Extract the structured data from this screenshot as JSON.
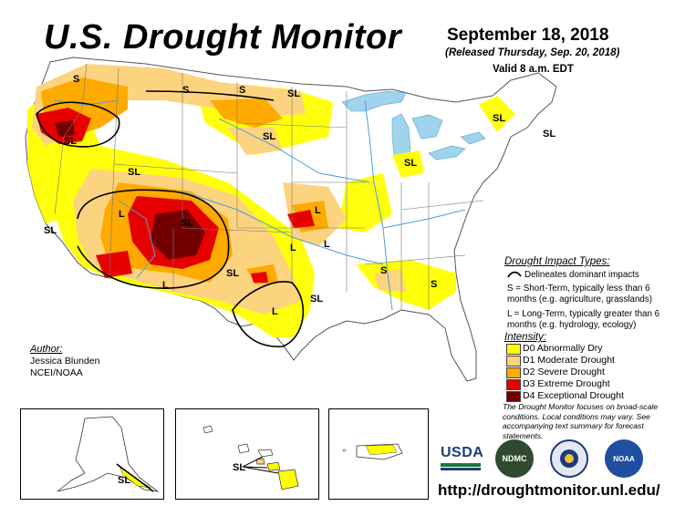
{
  "header": {
    "title": "U.S. Drought Monitor",
    "date": "September 18, 2018",
    "released": "(Released Thursday, Sep. 20, 2018)",
    "valid": "Valid 8 a.m. EDT"
  },
  "map_labels": {
    "s_nw": "S",
    "s_mt": "S",
    "s_nd_upper": "S",
    "sl_nd": "SL",
    "sl_sd": "SL",
    "sl_or": "SL",
    "sl_ut": "SL",
    "sl_nv": "SL",
    "l_ut": "L",
    "sl_co": "SL",
    "l_nm": "L",
    "sl_nm_e": "SL",
    "l_ks": "L",
    "l_ks2": "L",
    "l_ok": "L",
    "sl_ne_tx": "SL",
    "l_tx": "L",
    "sl_ar": "SL",
    "s_tn": "S",
    "s_ga": "S",
    "sl_mi": "SL",
    "sl_ny": "SL",
    "sl_ne": "SL"
  },
  "legend": {
    "impact_title": "Drought Impact Types:",
    "impact_line": "Delineates dominant impacts",
    "impact_s": "S = Short-Term, typically less than 6 months (e.g. agriculture, grasslands)",
    "impact_l": "L = Long-Term, typically greater than 6 months (e.g. hydrology, ecology)",
    "intensity_title": "Intensity:",
    "categories": [
      {
        "label": "D0 Abnormally Dry",
        "color": "#ffff00"
      },
      {
        "label": "D1 Moderate Drought",
        "color": "#fcd37f"
      },
      {
        "label": "D2 Severe Drought",
        "color": "#ffaa00"
      },
      {
        "label": "D3 Extreme Drought",
        "color": "#e60000"
      },
      {
        "label": "D4 Exceptional Drought",
        "color": "#730000"
      }
    ]
  },
  "author": {
    "label": "Author:",
    "name": "Jessica Blunden",
    "org": "NCEI/NOAA"
  },
  "note": "The Drought Monitor focuses on broad-scale conditions. Local conditions may vary. See accompanying text summary for forecast statements.",
  "insets": {
    "alaska_label": "SL",
    "hawaii_label": "SL"
  },
  "logos": {
    "usda": "USDA",
    "ndmc": "NDMC",
    "noaa": "NOAA"
  },
  "url": "http://droughtmonitor.unl.edu/"
}
